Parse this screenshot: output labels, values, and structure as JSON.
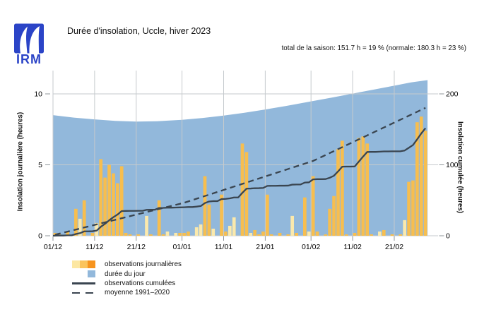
{
  "logo": {
    "text": "IRM",
    "color": "#2B44C7"
  },
  "header": {
    "title": "Durée d'insolation, Uccle, hiver 2023",
    "season_total": "total de la saison: 151.7 h = 19 % (normale: 180.3 h = 23 %)"
  },
  "colors": {
    "area_blue": "#92B8DB",
    "bar_orange": "#F7BE4F",
    "bar_pale": "#FBE9AC",
    "legend_pale": "#FCE7A2",
    "legend_mid": "#FBC45C",
    "legend_strong": "#F7941E",
    "line_dark": "#3A4550",
    "grid": "#C6CACD",
    "tick": "#8F959A",
    "logo_blue": "#2B44C7"
  },
  "chart_data": {
    "type": "bar",
    "title": "Durée d'insolation, Uccle, hiver 2023",
    "subtitle": "total de la saison: 151.7 h = 19 % (normale: 180.3 h = 23 %)",
    "x_tick_labels": [
      "01/12",
      "11/12",
      "21/12",
      "01/01",
      "11/01",
      "21/01",
      "01/02",
      "11/02",
      "21/02"
    ],
    "x_tick_day_index": [
      0,
      10,
      20,
      31,
      41,
      51,
      62,
      72,
      82
    ],
    "days_total": 90,
    "left_axis": {
      "label": "Insolation journalière (heures)",
      "ticks": [
        0,
        5,
        10
      ],
      "range": [
        0,
        11.6
      ]
    },
    "right_axis": {
      "label": "Insolation cumulée (heures)",
      "ticks": [
        0,
        100,
        200
      ],
      "range": [
        0,
        232
      ]
    },
    "grid": true,
    "legend_position": "bottom-left",
    "series": [
      {
        "name": "observations journalières",
        "type": "bar",
        "unit": "heures",
        "values": [
          0.2,
          0.1,
          0,
          0.3,
          0,
          1.9,
          1.2,
          2.5,
          0,
          0.2,
          0.9,
          5.4,
          4.1,
          5.0,
          4.4,
          3.7,
          4.9,
          0.2,
          0.1,
          0,
          0.1,
          0,
          1.4,
          0.1,
          0,
          2.5,
          0.1,
          0.3,
          0,
          0.2,
          0.2,
          0.2,
          0.3,
          0,
          0.6,
          0.8,
          4.2,
          2.2,
          0.5,
          0,
          2.9,
          0.3,
          0.7,
          1.3,
          0,
          6.5,
          5.9,
          0.2,
          0.4,
          0.1,
          0.3,
          2.9,
          0.1,
          0,
          0.2,
          0,
          0.1,
          1.4,
          0.2,
          0,
          2.7,
          0.3,
          4.2,
          0.3,
          0,
          0.1,
          1.9,
          2.8,
          6.1,
          6.7,
          0.1,
          0,
          0.2,
          6.9,
          7.0,
          6.5,
          0.1,
          0,
          0.3,
          0.4,
          0,
          0.1,
          0,
          0.1,
          1.1,
          3.8,
          3.9,
          8.0,
          8.4,
          7.4
        ],
        "pale_day_indices": [
          6,
          10,
          22,
          27,
          29,
          34,
          35,
          38,
          42,
          43,
          47,
          57,
          61,
          78,
          84
        ]
      },
      {
        "name": "durée du jour",
        "type": "area",
        "unit": "heures",
        "x_day_index": [
          0,
          5,
          10,
          15,
          20,
          25,
          31,
          36,
          41,
          46,
          51,
          56,
          62,
          67,
          72,
          77,
          82,
          86,
          89
        ],
        "values": [
          8.5,
          8.33,
          8.2,
          8.1,
          8.05,
          8.07,
          8.17,
          8.3,
          8.47,
          8.67,
          8.9,
          9.15,
          9.47,
          9.74,
          10.02,
          10.3,
          10.58,
          10.81,
          10.97
        ]
      },
      {
        "name": "observations cumulées",
        "type": "line",
        "unit": "heures cumulées",
        "derived_from": "cumulative sum of observations journalières",
        "end_value": 151.7
      },
      {
        "name": "moyenne 1991–2020",
        "type": "dashed-line",
        "unit": "heures cumulées",
        "x_day_index": [
          0,
          31,
          62,
          89
        ],
        "values": [
          1.5,
          46.5,
          105.5,
          180.3
        ]
      }
    ]
  },
  "legend": {
    "items": [
      {
        "label": "observations journalières"
      },
      {
        "label": "durée du jour"
      },
      {
        "label": "observations cumulées"
      },
      {
        "label": "moyenne 1991–2020"
      }
    ]
  }
}
